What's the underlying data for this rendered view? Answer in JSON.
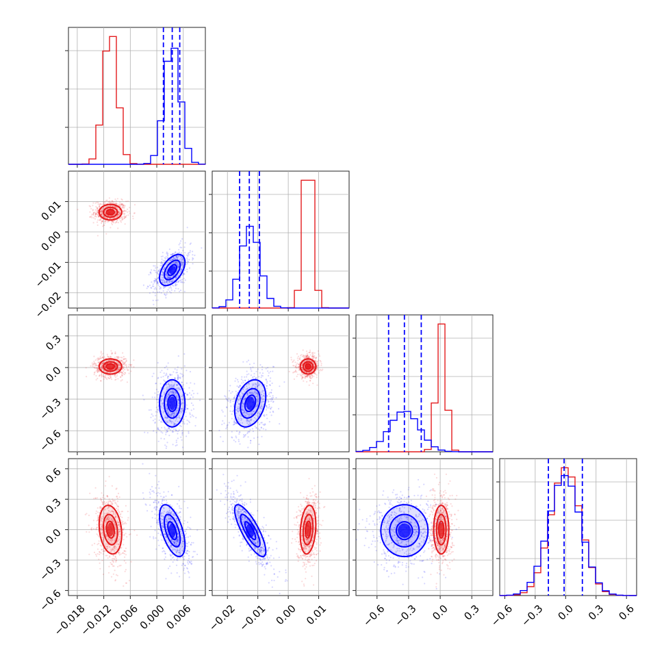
{
  "chart_data": {
    "type": "corner",
    "grid": true,
    "colors": {
      "red": "#e41a1c",
      "blue": "#0000ff"
    },
    "parameters": [
      {
        "range": [
          -0.02,
          0.011
        ],
        "ticks": [
          -0.018,
          -0.012,
          -0.006,
          0.0,
          0.006
        ],
        "tick_labels": [
          "−0.018",
          "−0.012",
          "−0.006",
          "0.000",
          "0.006"
        ]
      },
      {
        "range": [
          -0.025,
          0.02
        ],
        "ticks": [
          -0.02,
          -0.01,
          0.0,
          0.01
        ],
        "tick_labels": [
          "−0.02",
          "−0.01",
          "0.00",
          "0.01"
        ]
      },
      {
        "range": [
          -0.8,
          0.5
        ],
        "ticks": [
          -0.6,
          -0.3,
          0.0,
          0.3
        ],
        "tick_labels": [
          "−0.6",
          "−0.3",
          "0.0",
          "0.3"
        ]
      },
      {
        "range": [
          -0.65,
          0.7
        ],
        "ticks": [
          -0.6,
          -0.3,
          0.0,
          0.3,
          0.6
        ],
        "tick_labels": [
          "−0.6",
          "−0.3",
          "0.0",
          "0.3",
          "0.6"
        ]
      }
    ],
    "series": [
      {
        "color": "red",
        "mean": [
          -0.0105,
          0.0065,
          0.01,
          0.0
        ],
        "sd": [
          0.0016,
          0.0016,
          0.045,
          0.15
        ],
        "corr": {
          "1-0": 0.0,
          "2-0": 0.0,
          "2-1": 0.0,
          "3-0": -0.2,
          "3-1": 0.2,
          "3-2": 0.0
        }
      },
      {
        "color": "blue",
        "mean": [
          0.0035,
          -0.0125,
          -0.34,
          -0.01
        ],
        "sd": [
          0.0018,
          0.0032,
          0.14,
          0.16
        ],
        "corr": {
          "1-0": 0.5,
          "2-0": 0.0,
          "2-1": 0.3,
          "3-0": -0.55,
          "3-1": -0.8,
          "3-2": 0.0
        }
      }
    ],
    "quantile_lines": {
      "color": "blue",
      "values": [
        [
          0.0015,
          0.0035,
          0.0052
        ],
        [
          -0.016,
          -0.0128,
          -0.0095
        ],
        [
          -0.49,
          -0.34,
          -0.18
        ],
        [
          -0.17,
          -0.015,
          0.165
        ]
      ]
    }
  }
}
